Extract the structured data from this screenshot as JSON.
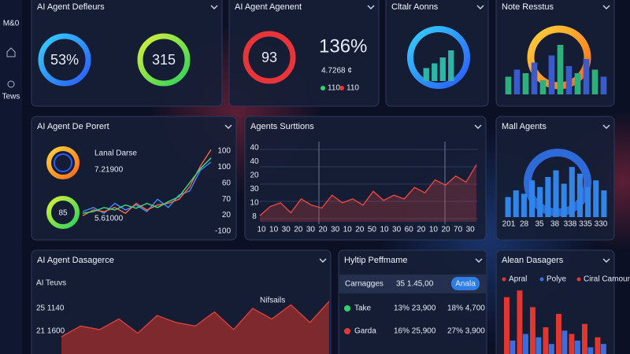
{
  "sidebar": {
    "items": [
      "M&0",
      "Tews"
    ]
  },
  "panels": [
    {
      "title": "AI Agent Defleurs",
      "donuts": [
        "53%",
        "315"
      ]
    },
    {
      "title": "AI Agent Agenent",
      "donut": "93",
      "stat": "136%",
      "sub": "4.7268 ¢",
      "legend": [
        "110",
        "110"
      ]
    },
    {
      "title": "Cltalr Aonns",
      "chart": {
        "type": "bar",
        "color": "#2bb6a8",
        "values": [
          22,
          30,
          40,
          52
        ],
        "ylim": [
          0,
          60
        ]
      }
    },
    {
      "title": "Note Resstus",
      "chart": {
        "type": "bar",
        "colors": [
          "#2fb07a",
          "#3a5bd0"
        ],
        "values": [
          25,
          35,
          30,
          45,
          20,
          55,
          70,
          40,
          30,
          50,
          35,
          25
        ],
        "ylim": [
          0,
          100
        ]
      }
    },
    {
      "title": "AI Agent De Porert",
      "labels": [
        "Lanal Darse",
        "7.21900",
        "85",
        "5.61000"
      ],
      "y_labels": [
        "100",
        "100",
        "60",
        "70",
        "20",
        "-100"
      ],
      "chart": {
        "type": "line",
        "ylim": [
          0,
          100
        ],
        "series": [
          {
            "color": "#3d8bff",
            "values": [
              20,
              25,
              18,
              30,
              22,
              28,
              20,
              35,
              25,
              40,
              45,
              70,
              80
            ]
          },
          {
            "color": "#ff6a3d",
            "values": [
              15,
              22,
              20,
              25,
              18,
              30,
              22,
              28,
              30,
              35,
              50,
              75,
              95
            ]
          },
          {
            "color": "#3ddc84",
            "values": [
              18,
              20,
              25,
              22,
              28,
              24,
              30,
              25,
              32,
              38,
              55,
              72,
              85
            ]
          }
        ]
      }
    },
    {
      "title": "Agents Surttions",
      "y_labels": [
        "40",
        "40",
        "20",
        "30",
        "10",
        "8"
      ],
      "x_labels": [
        "10",
        "10",
        "30",
        "20",
        "30",
        "20",
        "30",
        "10",
        "20",
        "50",
        "10",
        "30",
        "60",
        "20",
        "10",
        "20",
        "70",
        "30"
      ],
      "chart": {
        "type": "line",
        "color": "#e8473e",
        "ylim": [
          0,
          100
        ],
        "values": [
          8,
          20,
          25,
          12,
          30,
          22,
          18,
          35,
          25,
          30,
          22,
          40,
          28,
          35,
          30,
          45,
          38,
          55,
          48,
          60,
          52,
          75
        ]
      }
    },
    {
      "title": "Mall Agents",
      "x_labels": [
        "201",
        "28",
        "35",
        "38",
        "338",
        "335",
        "330"
      ],
      "chart": {
        "type": "bar",
        "color": "#2f86e8",
        "values": [
          30,
          40,
          35,
          55,
          45,
          60,
          70,
          50,
          75,
          65,
          45,
          55,
          40
        ],
        "ylim": [
          0,
          100
        ]
      }
    },
    {
      "title": "AI Agent Dasagerce",
      "subtitle": "AI Teuvs",
      "y_labels": [
        "25 1140",
        "21 1600"
      ],
      "annotation": "Nifsails",
      "chart": {
        "type": "area",
        "color": "#d8403a",
        "values": [
          30,
          45,
          40,
          55,
          35,
          60,
          50,
          45,
          65,
          40,
          70,
          55,
          75,
          50,
          80
        ],
        "ylim": [
          0,
          100
        ]
      }
    },
    {
      "title": "Hyltip Peffmame",
      "header": [
        "Carnagges",
        "35 1.45,00"
      ],
      "button": "Anala",
      "rows": [
        [
          "Take",
          "13% 23,900",
          "18% 4,700"
        ],
        [
          "Garda",
          "16% 25,900",
          "27% 3,900"
        ]
      ]
    },
    {
      "title": "Alean Dasagers",
      "legend": [
        "Apral",
        "Polye",
        "Ciral Camour"
      ],
      "chart": {
        "type": "bar",
        "ylim": [
          0,
          100
        ],
        "series": [
          {
            "color": "#e2362f",
            "values": [
              85,
              95,
              70,
              40,
              60,
              30,
              45,
              25
            ]
          },
          {
            "color": "#3a6fe0",
            "values": [
              20,
              30,
              25,
              15,
              35,
              20,
              10,
              15
            ]
          }
        ]
      }
    }
  ]
}
